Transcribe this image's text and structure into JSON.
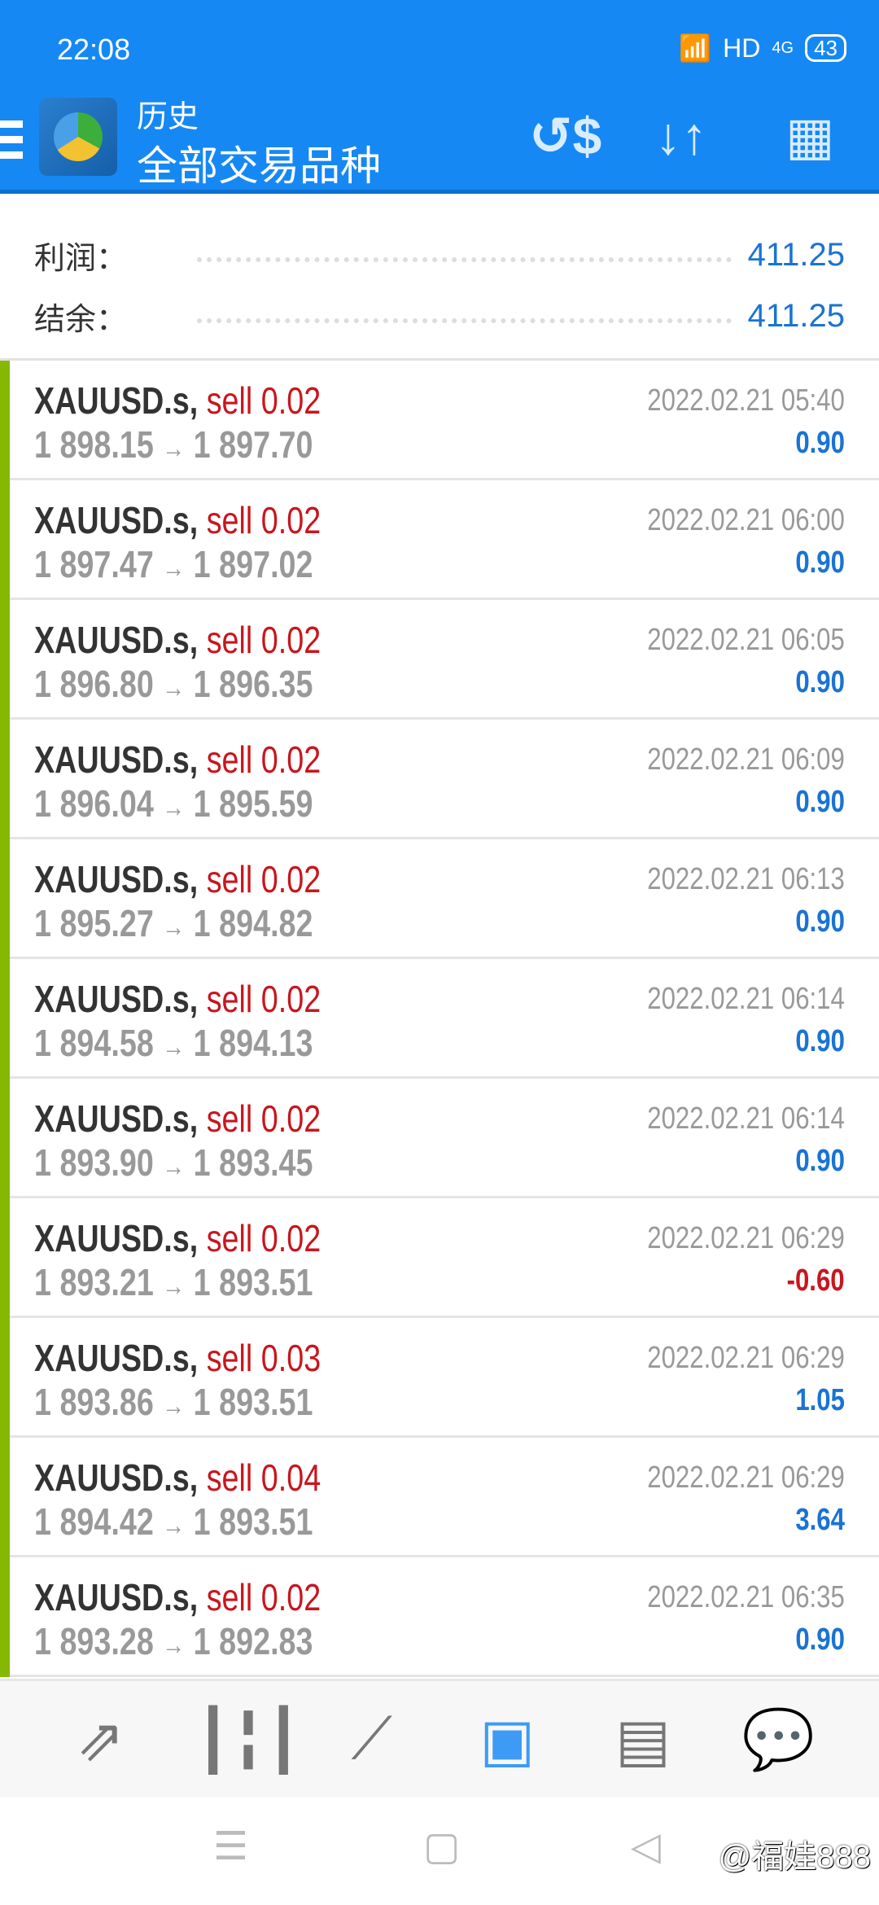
{
  "status_bar": {
    "time": "22:08",
    "network": "HD",
    "signal": "4G",
    "battery": "43"
  },
  "header": {
    "title": "历史",
    "subtitle": "全部交易品种",
    "icons": [
      "currency-exchange-icon",
      "sort-icon",
      "calendar-icon"
    ]
  },
  "summary": {
    "profit_label": "利润：",
    "profit": "411.25",
    "balance_label": "结余：",
    "balance": "411.25"
  },
  "colors": {
    "header": "#1688f4",
    "positive": "#1a73d4",
    "negative": "#c8161e",
    "buy_sell_bar": "#85b800"
  },
  "trades": [
    {
      "symbol": "XAUUSD.s,",
      "type": "sell 0.02",
      "open": "1 898.15",
      "close": "1 897.70",
      "time": "2022.02.21 05:40",
      "profit": "0.90"
    },
    {
      "symbol": "XAUUSD.s,",
      "type": "sell 0.02",
      "open": "1 897.47",
      "close": "1 897.02",
      "time": "2022.02.21 06:00",
      "profit": "0.90"
    },
    {
      "symbol": "XAUUSD.s,",
      "type": "sell 0.02",
      "open": "1 896.80",
      "close": "1 896.35",
      "time": "2022.02.21 06:05",
      "profit": "0.90"
    },
    {
      "symbol": "XAUUSD.s,",
      "type": "sell 0.02",
      "open": "1 896.04",
      "close": "1 895.59",
      "time": "2022.02.21 06:09",
      "profit": "0.90"
    },
    {
      "symbol": "XAUUSD.s,",
      "type": "sell 0.02",
      "open": "1 895.27",
      "close": "1 894.82",
      "time": "2022.02.21 06:13",
      "profit": "0.90"
    },
    {
      "symbol": "XAUUSD.s,",
      "type": "sell 0.02",
      "open": "1 894.58",
      "close": "1 894.13",
      "time": "2022.02.21 06:14",
      "profit": "0.90"
    },
    {
      "symbol": "XAUUSD.s,",
      "type": "sell 0.02",
      "open": "1 893.90",
      "close": "1 893.45",
      "time": "2022.02.21 06:14",
      "profit": "0.90"
    },
    {
      "symbol": "XAUUSD.s,",
      "type": "sell 0.02",
      "open": "1 893.21",
      "close": "1 893.51",
      "time": "2022.02.21 06:29",
      "profit": "-0.60"
    },
    {
      "symbol": "XAUUSD.s,",
      "type": "sell 0.03",
      "open": "1 893.86",
      "close": "1 893.51",
      "time": "2022.02.21 06:29",
      "profit": "1.05"
    },
    {
      "symbol": "XAUUSD.s,",
      "type": "sell 0.04",
      "open": "1 894.42",
      "close": "1 893.51",
      "time": "2022.02.21 06:29",
      "profit": "3.64"
    },
    {
      "symbol": "XAUUSD.s,",
      "type": "sell 0.02",
      "open": "1 893.28",
      "close": "1 892.83",
      "time": "2022.02.21 06:35",
      "profit": "0.90"
    }
  ],
  "arrow": "→",
  "bottom_nav": [
    {
      "icon": "quotes-icon",
      "glyph": "⇗"
    },
    {
      "icon": "chart-candles-icon",
      "glyph": "┃╏┃"
    },
    {
      "icon": "trade-icon",
      "glyph": "⟋"
    },
    {
      "icon": "history-inbox-icon",
      "glyph": "▣",
      "active": true
    },
    {
      "icon": "news-icon",
      "glyph": "▤"
    },
    {
      "icon": "chat-icon",
      "glyph": "💬"
    }
  ],
  "watermark": "@福娃888"
}
